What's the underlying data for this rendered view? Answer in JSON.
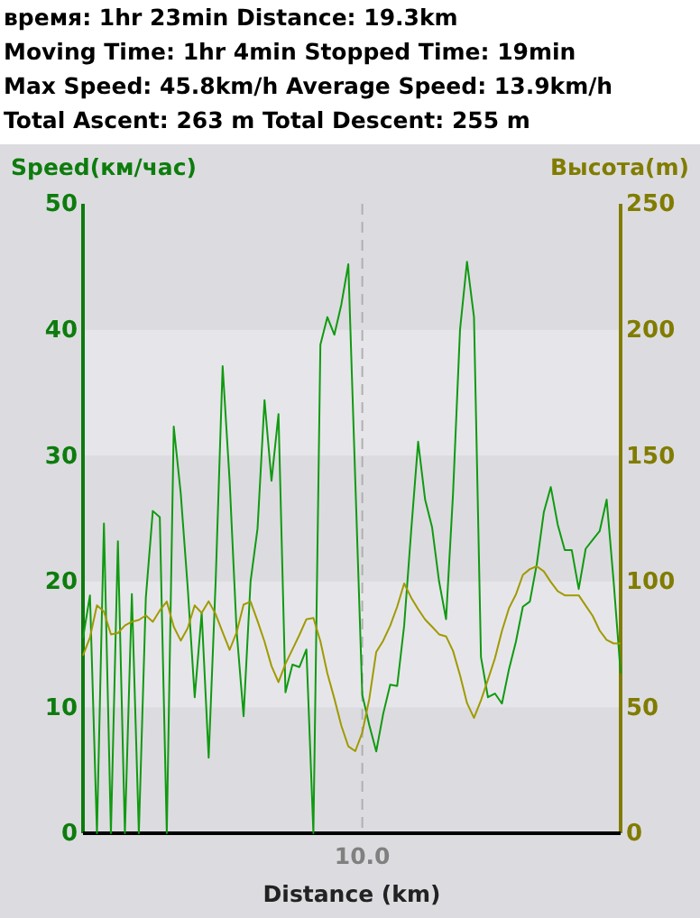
{
  "chart_data": {
    "type": "line",
    "annotations": [
      "время: 1hr 23min  Distance: 19.3km",
      "Moving Time: 1hr 4min  Stopped Time: 19min",
      "Max Speed: 45.8km/h  Average Speed: 13.9km/h",
      "Total Ascent: 263 m  Total Descent: 255 m"
    ],
    "xlabel": "Distance (km)",
    "ylabel": "Speed(км/час)",
    "y2label": "Высота(m)",
    "categories": [
      null,
      null,
      null,
      null,
      null,
      null,
      null,
      null,
      null,
      null,
      null,
      null,
      null,
      null,
      null,
      null,
      null,
      null,
      null,
      null,
      null,
      null,
      null,
      null,
      null,
      null,
      null,
      null,
      null,
      null,
      null,
      null,
      null,
      null,
      null,
      null,
      null,
      null,
      null,
      null,
      "10.0",
      null,
      null,
      null,
      null,
      null,
      null,
      null,
      null,
      null,
      null,
      null,
      null,
      null,
      null,
      null,
      null,
      null,
      null,
      null,
      null,
      null,
      null,
      null,
      null,
      null,
      null,
      null,
      null,
      null,
      null,
      null,
      null,
      null,
      null,
      null,
      null,
      null
    ],
    "ylim": [
      0,
      50
    ],
    "yticks": [
      0,
      10,
      20,
      30,
      40,
      50
    ],
    "y2lim": [
      0,
      250
    ],
    "y2ticks": [
      0,
      50,
      100,
      150,
      200,
      250
    ],
    "ref_lines": [
      {
        "axis": "x",
        "value": "10.0",
        "color": "#b0b0b0",
        "line_style": "dashed"
      }
    ],
    "series": [
      {
        "color": "#109a10",
        "values": [
          15.5,
          18.9,
          0,
          24.6,
          0,
          23.2,
          0,
          19,
          0,
          18.7,
          25.6,
          25.1,
          0,
          32.3,
          27,
          19.5,
          10.8,
          17.5,
          6,
          20,
          37.1,
          28,
          16.1,
          9.3,
          20,
          24.2,
          34.4,
          28,
          33.3,
          11.2,
          13.4,
          13.2,
          14.6,
          0,
          38.8,
          41,
          39.6,
          42,
          45.2,
          28,
          11,
          8.6,
          6.5,
          9.5,
          11.8,
          11.7,
          16.5,
          24,
          31.1,
          26.5,
          24.3,
          20,
          17,
          27,
          40,
          45.4,
          41,
          14,
          10.8,
          11.1,
          10.3,
          13,
          15.2,
          18,
          18.4,
          21.4,
          25.5,
          27.5,
          24.5,
          22.5,
          22.5,
          19.4,
          22.6,
          23.3,
          24,
          26.5,
          20,
          12.7
        ]
      },
      {
        "color": "#a09a00",
        "axis": "y2",
        "values": [
          70.6,
          77.8,
          90.5,
          88,
          79,
          79.5,
          82.5,
          84,
          84.7,
          86.5,
          84,
          88.5,
          92,
          82,
          76.5,
          81.5,
          90.5,
          87.5,
          92.1,
          87,
          79.8,
          72.8,
          79.7,
          90.8,
          92,
          84.3,
          76.1,
          66.4,
          60,
          67.3,
          73,
          78.8,
          85,
          85.5,
          76.3,
          63.5,
          53.5,
          42.7,
          34.5,
          32.6,
          40,
          53.3,
          72,
          76.5,
          82.4,
          90,
          99.2,
          93.6,
          89,
          84.9,
          82,
          79,
          78.2,
          72.4,
          62.8,
          51.7,
          45.8,
          52.8,
          61,
          69.5,
          80.3,
          89.3,
          94.8,
          102.6,
          104.9,
          106,
          104,
          99.8,
          96.1,
          94.5,
          94.5,
          94.5,
          90.4,
          86.3,
          80.5,
          76.8,
          75.4,
          75.4
        ]
      }
    ]
  }
}
